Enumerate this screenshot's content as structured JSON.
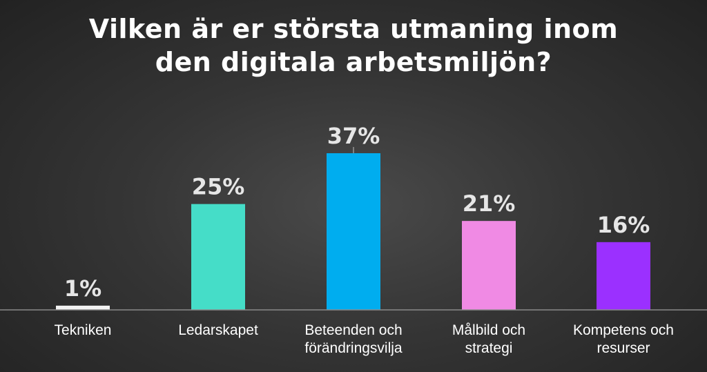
{
  "chart_data": {
    "type": "bar",
    "title_lines": [
      "Vilken är er största utmaning inom",
      "den digitala arbetsmiljön?"
    ],
    "categories": [
      [
        "Tekniken"
      ],
      [
        "Ledarskapet"
      ],
      [
        "Beteenden och",
        "förändringsvilja"
      ],
      [
        "Målbild och",
        "strategi"
      ],
      [
        "Kompetens och",
        "resurser"
      ]
    ],
    "values": [
      1,
      25,
      37,
      21,
      16
    ],
    "value_labels": [
      "1%",
      "25%",
      "37%",
      "21%",
      "16%"
    ],
    "colors": [
      "#f2f2f2",
      "#45ddc8",
      "#00adef",
      "#f08ae4",
      "#9b30ff"
    ],
    "unit": "%",
    "ylim": [
      0,
      37
    ],
    "grid": false,
    "legend": "none"
  }
}
